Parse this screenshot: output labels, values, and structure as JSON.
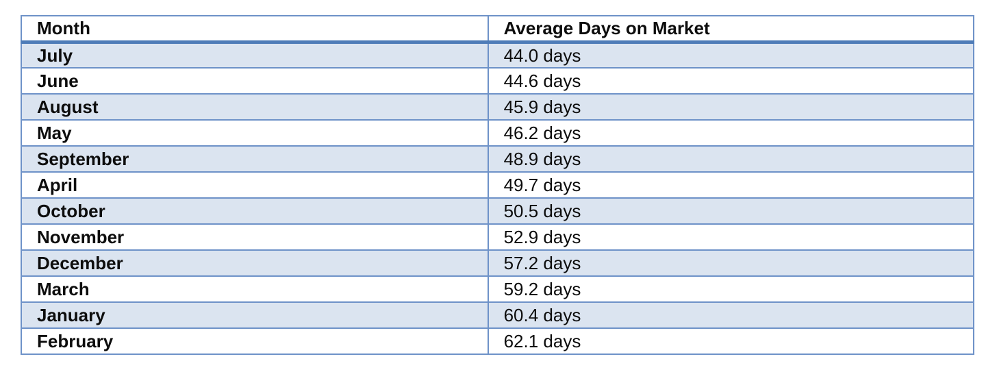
{
  "table": {
    "columns": [
      {
        "label": "Month"
      },
      {
        "label": "Average Days on Market"
      }
    ],
    "rows": [
      {
        "month": "July",
        "value": "44.0 days"
      },
      {
        "month": "June",
        "value": "44.6 days"
      },
      {
        "month": "August",
        "value": "45.9 days"
      },
      {
        "month": "May",
        "value": "46.2 days"
      },
      {
        "month": "September",
        "value": "48.9 days"
      },
      {
        "month": "April",
        "value": "49.7 days"
      },
      {
        "month": "October",
        "value": "50.5 days"
      },
      {
        "month": "November",
        "value": "52.9 days"
      },
      {
        "month": "December",
        "value": "57.2 days"
      },
      {
        "month": "March",
        "value": "59.2 days"
      },
      {
        "month": "January",
        "value": "60.4 days"
      },
      {
        "month": "February",
        "value": "62.1 days"
      }
    ]
  },
  "chart_data": {
    "type": "table",
    "title": "",
    "columns": [
      "Month",
      "Average Days on Market"
    ],
    "categories": [
      "July",
      "June",
      "August",
      "May",
      "September",
      "April",
      "October",
      "November",
      "December",
      "March",
      "January",
      "February"
    ],
    "values": [
      44.0,
      44.6,
      45.9,
      46.2,
      48.9,
      49.7,
      50.5,
      52.9,
      57.2,
      59.2,
      60.4,
      62.1
    ],
    "value_unit": "days",
    "layout_hints": {
      "sorted": "ascending by value",
      "row_striping": "alternating light blue starting at first data row",
      "header_rule": "thick dark blue line under header"
    }
  },
  "colors": {
    "row_shade": "#DBE4F0",
    "border_thin": "#6E92C8",
    "border_thick": "#4E7CB8",
    "background": "#FFFFFF",
    "text": "#0D0D0D"
  }
}
